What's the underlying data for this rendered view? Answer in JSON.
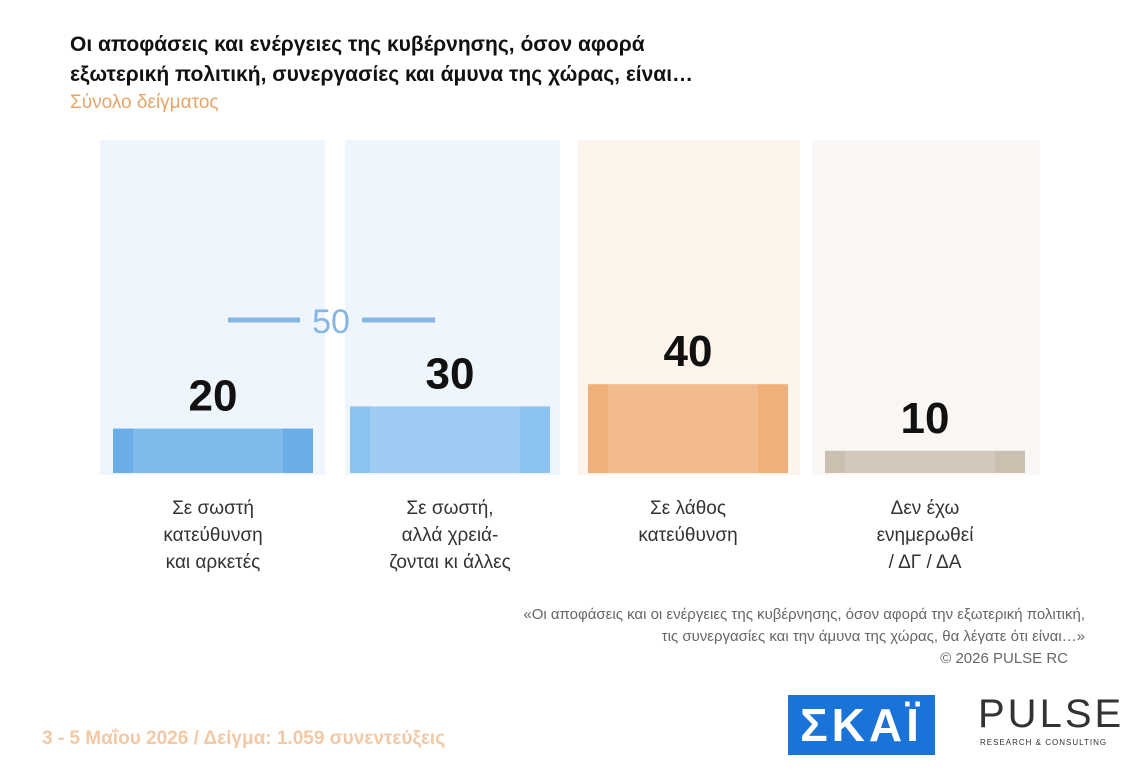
{
  "chart_data": {
    "type": "bar",
    "title": "Οι αποφάσεις και ενέργειες της κυβέρνησης, όσον αφορά\nεξωτερική πολιτική, συνεργασίες και άμυνα της χώρας, είναι…",
    "subtitle": "Σύνολο δείγματος",
    "categories": [
      "Σε σωστή\nκατεύθυνση\nκαι αρκετές",
      "Σε σωστή,\nαλλά χρειά-\nζονται κι άλλες",
      "Σε λάθος\nκατεύθυνση",
      "Δεν έχω\nενημερωθεί\n/ ΔΓ / ΔΑ"
    ],
    "values": [
      20,
      30,
      40,
      10
    ],
    "colors": [
      "#6aaee9",
      "#8cc2ef",
      "#efb07a",
      "#cbbfb0"
    ],
    "ylim": [
      0,
      150
    ],
    "annotation": {
      "value": 50,
      "color": "#86b6e3"
    },
    "footnote": "«Οι αποφάσεις και οι ενέργειες της κυβέρνησης, όσον αφορά την εξωτερική πολιτική,\nτις συνεργασίες και την άμυνα της χώρας, θα λέγατε ότι είναι…»",
    "copyright": "©  2026  PULSE RC",
    "footer": "3 - 5  Μαΐου 2026  /  Δείγμα:  1.059 συνεντεύξεις",
    "logos": {
      "skai": "ΣΚΑΪ",
      "pulse": "PULSE",
      "pulse_sub": "RESEARCH & CONSULTING"
    }
  }
}
